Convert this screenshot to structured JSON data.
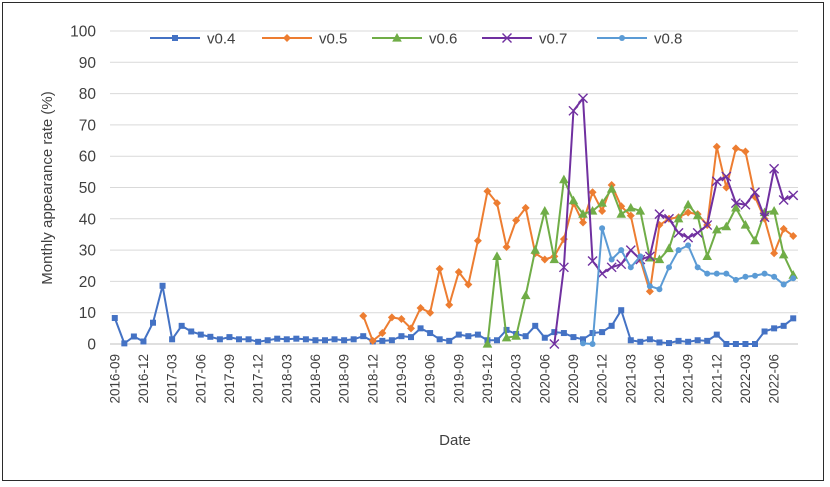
{
  "chart_data": {
    "type": "line",
    "title": "",
    "xlabel": "Date",
    "ylabel": "Monthly appearance rate (%)",
    "ylim": [
      0,
      100
    ],
    "yticks": [
      0,
      10,
      20,
      30,
      40,
      50,
      60,
      70,
      80,
      90,
      100
    ],
    "grid": true,
    "legend_position": "top",
    "x": [
      "2016-09",
      "2016-10",
      "2016-11",
      "2016-12",
      "2017-01",
      "2017-02",
      "2017-03",
      "2017-04",
      "2017-05",
      "2017-06",
      "2017-07",
      "2017-08",
      "2017-09",
      "2017-10",
      "2017-11",
      "2017-12",
      "2018-01",
      "2018-02",
      "2018-03",
      "2018-04",
      "2018-05",
      "2018-06",
      "2018-07",
      "2018-08",
      "2018-09",
      "2018-10",
      "2018-11",
      "2018-12",
      "2019-01",
      "2019-02",
      "2019-03",
      "2019-04",
      "2019-05",
      "2019-06",
      "2019-07",
      "2019-08",
      "2019-09",
      "2019-10",
      "2019-11",
      "2019-12",
      "2020-01",
      "2020-02",
      "2020-03",
      "2020-04",
      "2020-05",
      "2020-06",
      "2020-07",
      "2020-08",
      "2020-09",
      "2020-10",
      "2020-11",
      "2020-12",
      "2021-01",
      "2021-02",
      "2021-03",
      "2021-04",
      "2021-05",
      "2021-06",
      "2021-07",
      "2021-08",
      "2021-09",
      "2021-10",
      "2021-11",
      "2021-12",
      "2022-01",
      "2022-02",
      "2022-03",
      "2022-04",
      "2022-05",
      "2022-06",
      "2022-07",
      "2022-08"
    ],
    "xtick_labels": [
      "2016-09",
      "2016-12",
      "2017-03",
      "2017-06",
      "2017-09",
      "2017-12",
      "2018-03",
      "2018-06",
      "2018-09",
      "2018-12",
      "2019-03",
      "2019-06",
      "2019-09",
      "2019-12",
      "2020-03",
      "2020-06",
      "2020-09",
      "2020-12",
      "2021-03",
      "2021-06",
      "2021-09",
      "2021-12",
      "2022-03",
      "2022-06"
    ],
    "series": [
      {
        "name": "v0.4",
        "color": "#4472C4",
        "marker": "square",
        "values": [
          8.3,
          0.2,
          2.4,
          0.8,
          6.8,
          18.6,
          1.5,
          5.8,
          4,
          3,
          2.3,
          1.5,
          2.2,
          1.5,
          1.5,
          0.7,
          1.2,
          1.7,
          1.5,
          1.7,
          1.5,
          1.2,
          1.2,
          1.5,
          1.2,
          1.5,
          2.5,
          0.8,
          1,
          1.2,
          2.5,
          2.2,
          5,
          3.5,
          1.5,
          1,
          3,
          2.5,
          3,
          1.2,
          1.2,
          4.5,
          3.2,
          2.5,
          5.8,
          2,
          3.8,
          3.5,
          2.2,
          1.5,
          3.5,
          3.8,
          5.8,
          10.8,
          1.2,
          0.7,
          1.5,
          0.5,
          0.3,
          1,
          0.7,
          1.2,
          1,
          3,
          0,
          0,
          0,
          0,
          4,
          5,
          5.8,
          8.2
        ]
      },
      {
        "name": "v0.5",
        "color": "#ED7D31",
        "marker": "diamond",
        "values": [
          null,
          null,
          null,
          null,
          null,
          null,
          null,
          null,
          null,
          null,
          null,
          null,
          null,
          null,
          null,
          null,
          null,
          null,
          null,
          null,
          null,
          null,
          null,
          null,
          null,
          null,
          9,
          1,
          3.5,
          8.5,
          8,
          5,
          11.5,
          10,
          24,
          12.5,
          23,
          19,
          33,
          48.8,
          45,
          31,
          39.5,
          43.5,
          29,
          27,
          28,
          33.5,
          45,
          38.8,
          48.5,
          42.5,
          50.8,
          44,
          41,
          27,
          16.8,
          38,
          40,
          40.5,
          42,
          41.5,
          38,
          63,
          50,
          62.5,
          61.5,
          47,
          40,
          29,
          36.8,
          34.5
        ]
      },
      {
        "name": "v0.6",
        "color": "#70AD47",
        "marker": "triangle",
        "values": [
          null,
          null,
          null,
          null,
          null,
          null,
          null,
          null,
          null,
          null,
          null,
          null,
          null,
          null,
          null,
          null,
          null,
          null,
          null,
          null,
          null,
          null,
          null,
          null,
          null,
          null,
          null,
          null,
          null,
          null,
          null,
          null,
          null,
          null,
          null,
          null,
          null,
          null,
          null,
          0,
          28,
          2,
          2.5,
          15.5,
          30,
          42.5,
          27,
          52.5,
          45.8,
          41.5,
          42.5,
          45,
          49.5,
          41.5,
          43.5,
          42.5,
          27.5,
          27,
          30.5,
          40,
          44.5,
          41,
          28,
          36.5,
          37.5,
          43.5,
          38,
          33,
          42,
          42.5,
          28.5,
          22
        ]
      },
      {
        "name": "v0.7",
        "color": "#7030A0",
        "marker": "x",
        "values": [
          null,
          null,
          null,
          null,
          null,
          null,
          null,
          null,
          null,
          null,
          null,
          null,
          null,
          null,
          null,
          null,
          null,
          null,
          null,
          null,
          null,
          null,
          null,
          null,
          null,
          null,
          null,
          null,
          null,
          null,
          null,
          null,
          null,
          null,
          null,
          null,
          null,
          null,
          null,
          null,
          null,
          null,
          null,
          null,
          null,
          null,
          0,
          24.5,
          74.5,
          78.5,
          26.5,
          22.5,
          24.5,
          25.5,
          30,
          27,
          28,
          41.5,
          40,
          35.5,
          34,
          35.5,
          38,
          52,
          53.5,
          45,
          44.5,
          48.5,
          40.5,
          56,
          46,
          47.5
        ]
      },
      {
        "name": "v0.8",
        "color": "#5B9BD5",
        "marker": "circle",
        "values": [
          null,
          null,
          null,
          null,
          null,
          null,
          null,
          null,
          null,
          null,
          null,
          null,
          null,
          null,
          null,
          null,
          null,
          null,
          null,
          null,
          null,
          null,
          null,
          null,
          null,
          null,
          null,
          null,
          null,
          null,
          null,
          null,
          null,
          null,
          null,
          null,
          null,
          null,
          null,
          null,
          null,
          null,
          null,
          null,
          null,
          null,
          null,
          null,
          null,
          0.2,
          0,
          37,
          27,
          30,
          24.5,
          28,
          18.5,
          17.5,
          24.5,
          30,
          31.5,
          24.5,
          22.5,
          22.5,
          22.5,
          20.5,
          21.5,
          21.8,
          22.5,
          21.5,
          19,
          21
        ]
      }
    ]
  }
}
